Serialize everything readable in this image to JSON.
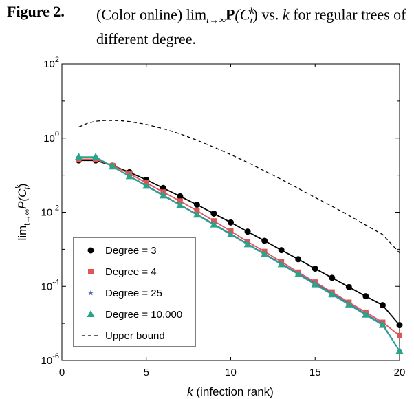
{
  "caption": {
    "label": "Figure 2.",
    "prefix": "(Color online) lim",
    "sub": "t→∞",
    "bold": "P",
    "paren_open": "(C",
    "c_sup": "k",
    "c_sub": "t",
    "paren_close": ")",
    "mid": " vs. ",
    "k": "k",
    "suffix": " for regular trees of different degree."
  },
  "chart_data": {
    "type": "line",
    "title": "",
    "xlabel": {
      "var": "k",
      "rest": " (infection rank)"
    },
    "ylabel": {
      "lim": "lim",
      "sub": "t→∞",
      "main": "P(C",
      "sup": "k",
      "sub2": "t",
      "close": ")"
    },
    "xlim": [
      0,
      20
    ],
    "ylim": [
      1e-06,
      100
    ],
    "yscale": "log",
    "xticks": [
      "0",
      "5",
      "10",
      "15",
      "20"
    ],
    "yticks": [
      {
        "base": "10",
        "exp": "2"
      },
      {
        "base": "10",
        "exp": "0"
      },
      {
        "base": "10",
        "exp": "-2"
      },
      {
        "base": "10",
        "exp": "-4"
      },
      {
        "base": "10",
        "exp": "-6"
      }
    ],
    "grid": false,
    "legend_position": "bottom-left",
    "x": [
      1,
      2,
      3,
      4,
      5,
      6,
      7,
      8,
      9,
      10,
      11,
      12,
      13,
      14,
      15,
      16,
      17,
      18,
      19,
      20
    ],
    "series": [
      {
        "name": "Degree = 3",
        "color": "#000000",
        "marker": "circle",
        "values": [
          0.25,
          0.25,
          0.18,
          0.12,
          0.075,
          0.045,
          0.027,
          0.016,
          0.0092,
          0.0053,
          0.003,
          0.0017,
          0.00095,
          0.00054,
          0.0003,
          0.00017,
          9.55e-05,
          5.4e-05,
          3.1e-05,
          9e-06
        ]
      },
      {
        "name": "Degree = 4",
        "color": "#e05555",
        "marker": "square",
        "values": [
          0.27,
          0.27,
          0.18,
          0.11,
          0.062,
          0.035,
          0.02,
          0.011,
          0.0058,
          0.0031,
          0.0016,
          0.00087,
          0.00046,
          0.00024,
          0.00013,
          7e-05,
          3.7e-05,
          2e-05,
          1.07e-05,
          4.7e-06
        ]
      },
      {
        "name": "Degree = 25",
        "color": "#4a6fb5",
        "marker": "star",
        "values": [
          0.3,
          0.3,
          0.17,
          0.095,
          0.053,
          0.029,
          0.016,
          0.0088,
          0.0048,
          0.0026,
          0.0014,
          0.00076,
          0.00041,
          0.00022,
          0.00012,
          6.4e-05,
          3.4e-05,
          1.8e-05,
          9.6e-06,
          1.8e-06
        ]
      },
      {
        "name": "Degree = 10,000",
        "color": "#2aa58a",
        "marker": "triangle",
        "values": [
          0.31,
          0.31,
          0.17,
          0.093,
          0.051,
          0.028,
          0.0155,
          0.0085,
          0.0046,
          0.0025,
          0.00135,
          0.00073,
          0.00039,
          0.00021,
          0.000112,
          6e-05,
          3.2e-05,
          1.7e-05,
          9e-06,
          1.8e-06
        ]
      },
      {
        "name": "Upper bound",
        "color": "#000000",
        "marker": "none",
        "dash": true,
        "x": [
          1,
          1.5,
          2,
          2.5,
          3,
          3.5,
          4,
          5,
          6,
          7,
          8,
          9,
          10,
          11,
          12,
          13,
          14,
          15,
          16,
          17,
          18,
          19,
          20
        ],
        "values": [
          2.0,
          2.5,
          2.85,
          3.0,
          3.0,
          2.95,
          2.8,
          2.35,
          1.8,
          1.3,
          0.88,
          0.57,
          0.36,
          0.22,
          0.13,
          0.077,
          0.044,
          0.025,
          0.0145,
          0.0082,
          0.0045,
          0.0025,
          0.0008
        ]
      }
    ]
  }
}
